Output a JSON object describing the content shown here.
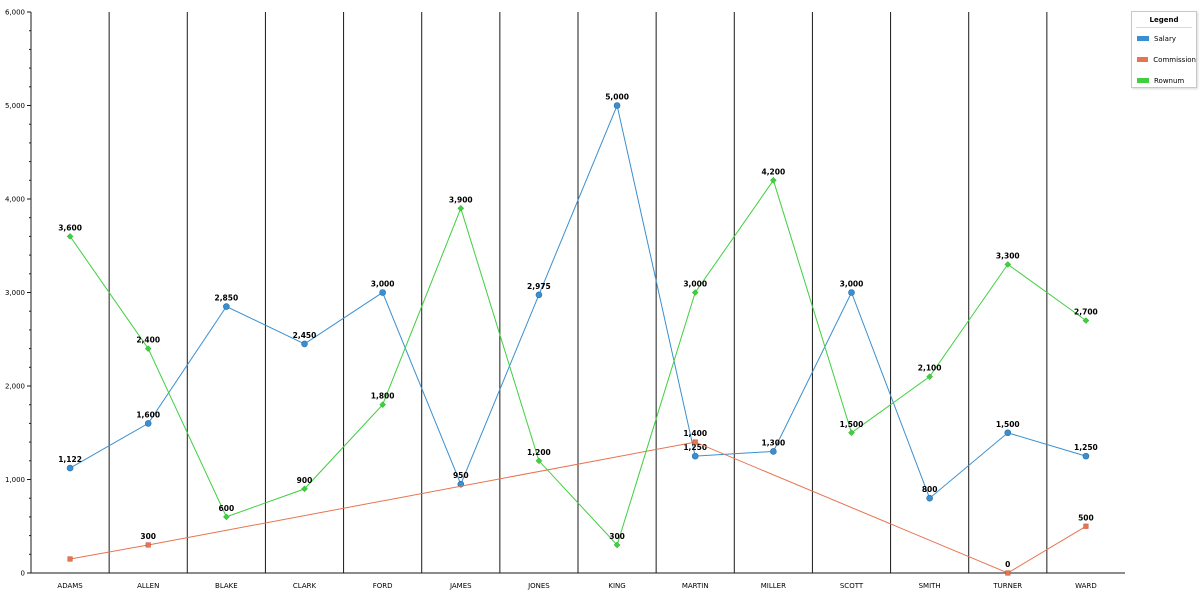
{
  "chart_data": {
    "type": "line",
    "categories": [
      "ADAMS",
      "ALLEN",
      "BLAKE",
      "CLARK",
      "FORD",
      "JAMES",
      "JONES",
      "KING",
      "MARTIN",
      "MILLER",
      "SCOTT",
      "SMITH",
      "TURNER",
      "WARD"
    ],
    "ylim": [
      0,
      6000
    ],
    "y_ticks": [
      0,
      1000,
      2000,
      3000,
      4000,
      5000,
      6000
    ],
    "y_tick_labels": [
      "0",
      "1,000",
      "2,000",
      "3,000",
      "4,000",
      "5,000",
      "6,000"
    ],
    "grid": {
      "vertical_category_lines": true,
      "horizontal": false
    },
    "legend": {
      "title": "Legend",
      "position": "top-right"
    },
    "series": [
      {
        "name": "Salary",
        "color": "#3a8fd0",
        "marker": "circle",
        "values": [
          1122,
          1600,
          2850,
          2450,
          3000,
          950,
          2975,
          5000,
          1250,
          1300,
          3000,
          800,
          1500,
          1250
        ],
        "labels": [
          "1,122",
          "1,600",
          "2,850",
          "2,450",
          "3,000",
          "950",
          "2,975",
          "5,000",
          "1,250",
          "1,300",
          "3,000",
          "800",
          "1,500",
          "1,250"
        ]
      },
      {
        "name": "Commission",
        "color": "#e8734f",
        "marker": "square",
        "values": [
          150,
          300,
          null,
          null,
          null,
          null,
          null,
          null,
          1400,
          null,
          null,
          null,
          0,
          500
        ],
        "labels": [
          "",
          "300",
          "",
          "",
          "",
          "",
          "",
          "",
          "1,400",
          "",
          "",
          "",
          "0",
          "500"
        ]
      },
      {
        "name": "Rownum",
        "color": "#3fcf3f",
        "marker": "diamond",
        "values": [
          3600,
          2400,
          600,
          900,
          1800,
          3900,
          1200,
          300,
          3000,
          4200,
          1500,
          2100,
          3300,
          2700
        ],
        "labels": [
          "3,600",
          "2,400",
          "600",
          "900",
          "1,800",
          "3,900",
          "1,200",
          "300",
          "3,000",
          "4,200",
          "1,500",
          "2,100",
          "3,300",
          "2,700"
        ]
      }
    ]
  }
}
